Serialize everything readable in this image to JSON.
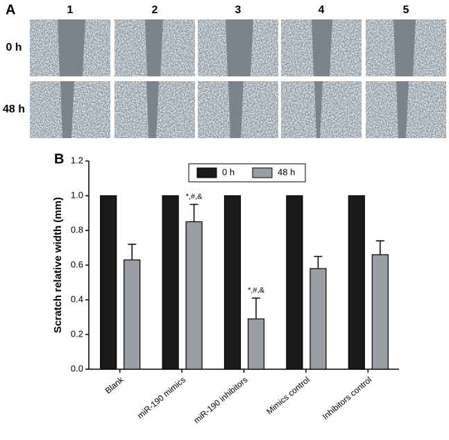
{
  "panel_a": {
    "label": "A",
    "columns": [
      "1",
      "2",
      "3",
      "4",
      "5"
    ],
    "rows": [
      "0 h",
      "48 h"
    ]
  },
  "chart_data": {
    "type": "bar",
    "label": "B",
    "y_label": "Scratch relative width (mm)",
    "categories": [
      "Blank",
      "miR-190 mimics",
      "miR-190 inhibitors",
      "Mimics control",
      "Inhibitors control"
    ],
    "series": [
      {
        "name": "0 h",
        "color": "#1a1a1a",
        "values": [
          1.0,
          1.0,
          1.0,
          1.0,
          1.0
        ]
      },
      {
        "name": "48 h",
        "color": "#9a9da3",
        "values": [
          0.63,
          0.85,
          0.29,
          0.58,
          0.66
        ],
        "errors": [
          0.09,
          0.1,
          0.12,
          0.07,
          0.08
        ],
        "annotations": [
          null,
          "*,#,&",
          "*,#,&",
          null,
          null
        ]
      }
    ],
    "ylim": [
      0,
      1.2
    ],
    "yticks": [
      {
        "value": 0,
        "label": "0.0"
      },
      0.2,
      0.4,
      0.6,
      0.8,
      {
        "value": 1,
        "label": "1.0"
      },
      1.2
    ],
    "legend": "top"
  }
}
